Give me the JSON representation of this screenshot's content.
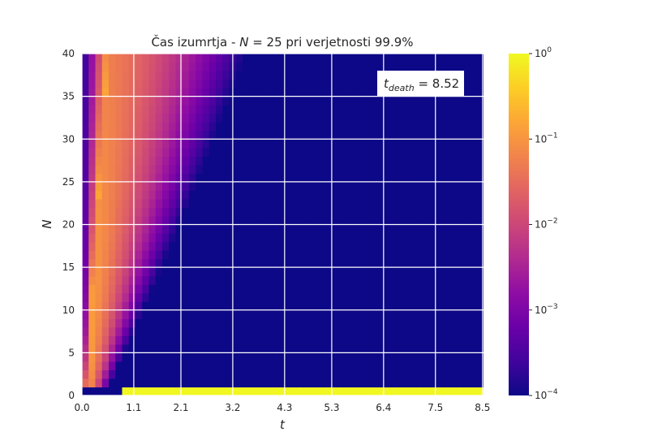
{
  "chart_data": {
    "type": "heatmap",
    "title_prefix": "Čas izumrtja - ",
    "title_var": "N",
    "title_rest": " = 25 pri verjetnosti 99.9%",
    "xlabel": "t",
    "ylabel": "N",
    "xticks": [
      "0.0",
      "1.1",
      "2.1",
      "3.2",
      "4.3",
      "5.3",
      "6.4",
      "7.5",
      "8.5"
    ],
    "yticks": [
      "0",
      "5",
      "10",
      "15",
      "20",
      "25",
      "30",
      "35",
      "40"
    ],
    "xlim": [
      0,
      8.52
    ],
    "ylim": [
      0,
      40
    ],
    "colorscale": "plasma",
    "color_scale_type": "log",
    "colorbar_range": [
      0.0001,
      1
    ],
    "colorbar_ticks": [
      {
        "base": "10",
        "exp": "0",
        "value": 1
      },
      {
        "base": "10",
        "exp": "−1",
        "value": 0.1
      },
      {
        "base": "10",
        "exp": "−2",
        "value": 0.01
      },
      {
        "base": "10",
        "exp": "−3",
        "value": 0.001
      },
      {
        "base": "10",
        "exp": "−4",
        "value": 0.0001
      }
    ],
    "annotation": {
      "sym": "t",
      "sub": "death",
      "rest": " = 8.52",
      "value": 8.52,
      "position": "top-right"
    },
    "grid": true
  }
}
